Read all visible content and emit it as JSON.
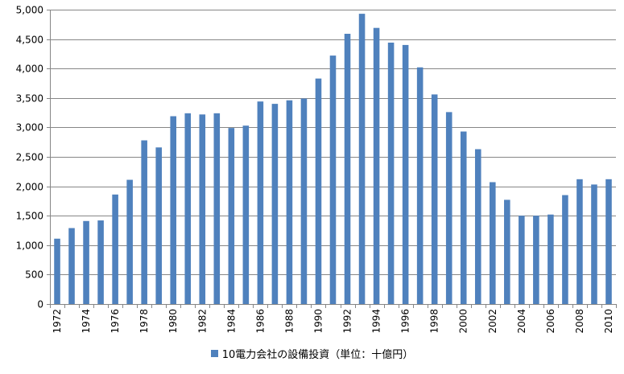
{
  "chart_data": {
    "type": "bar",
    "categories": [
      "1972",
      "1973",
      "1974",
      "1975",
      "1976",
      "1977",
      "1978",
      "1979",
      "1980",
      "1981",
      "1982",
      "1983",
      "1984",
      "1985",
      "1986",
      "1987",
      "1988",
      "1989",
      "1990",
      "1991",
      "1992",
      "1993",
      "1994",
      "1995",
      "1996",
      "1997",
      "1998",
      "1999",
      "2000",
      "2001",
      "2002",
      "2003",
      "2004",
      "2005",
      "2006",
      "2007",
      "2008",
      "2009",
      "2010"
    ],
    "tick_labels_shown": [
      "1972",
      "1974",
      "1976",
      "1978",
      "1980",
      "1982",
      "1984",
      "1986",
      "1988",
      "1990",
      "1992",
      "1994",
      "1996",
      "1998",
      "2000",
      "2002",
      "2004",
      "2006",
      "2008",
      "2010"
    ],
    "series": [
      {
        "name": "10電力会社の設備投資（単位：十億円）",
        "values": [
          1110,
          1290,
          1410,
          1420,
          1860,
          2110,
          2780,
          2660,
          3190,
          3240,
          3220,
          3240,
          2990,
          3030,
          3440,
          3400,
          3460,
          3490,
          3830,
          4220,
          4590,
          4930,
          4690,
          4440,
          4400,
          4020,
          3560,
          3260,
          2930,
          2630,
          2070,
          1770,
          1500,
          1500,
          1520,
          1850,
          2120,
          2030,
          2120
        ]
      }
    ],
    "ylim": [
      0,
      5000
    ],
    "yticks": [
      0,
      500,
      1000,
      1500,
      2000,
      2500,
      3000,
      3500,
      4000,
      4500,
      5000
    ],
    "ytick_labels": [
      "0",
      "500",
      "1,000",
      "1,500",
      "2,000",
      "2,500",
      "3,000",
      "3,500",
      "4,000",
      "4,500",
      "5,000"
    ],
    "grid": true,
    "legend_position": "bottom",
    "bar_color": "#4f81bd",
    "grid_color": "#868686"
  }
}
